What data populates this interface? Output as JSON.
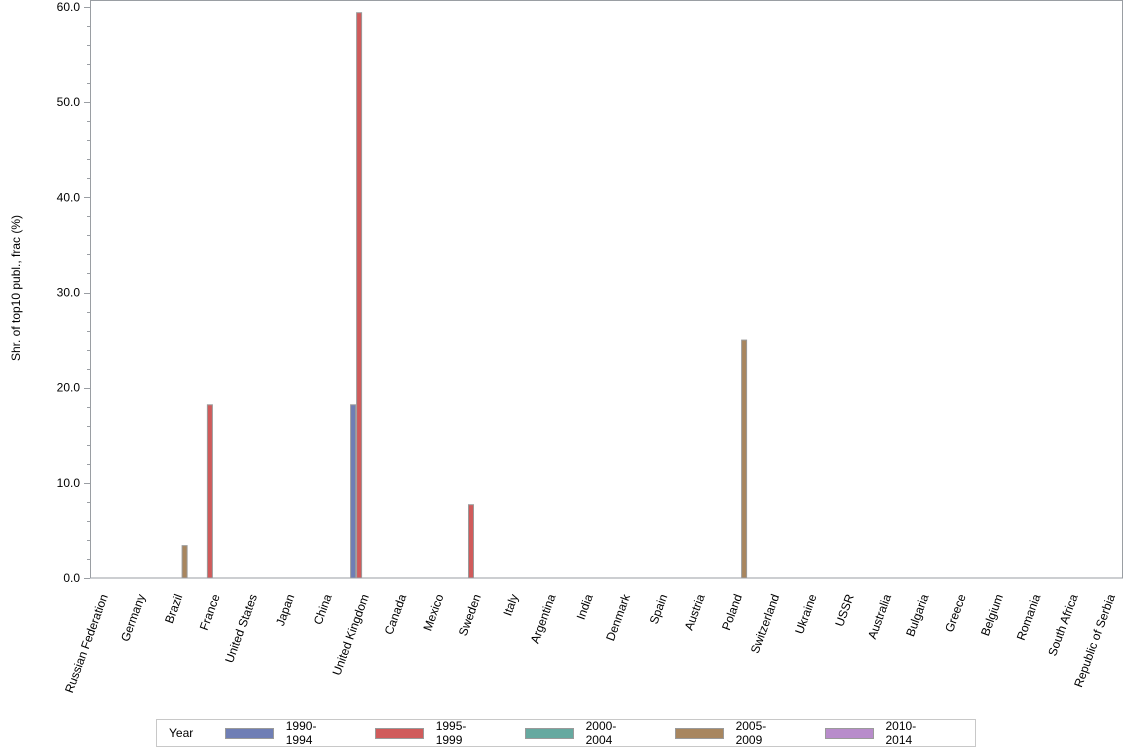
{
  "chart_data": {
    "type": "bar",
    "title": "",
    "xlabel": "",
    "ylabel": "Shr. of top10 publ., frac (%)",
    "ylim": [
      0,
      60
    ],
    "yticks": [
      "0.0",
      "10.0",
      "20.0",
      "30.0",
      "40.0",
      "50.0",
      "60.0"
    ],
    "grid": false,
    "legend_position": "bottom",
    "legend_title": "Year",
    "categories": [
      "Russian Federation",
      "Germany",
      "Brazil",
      "France",
      "United States",
      "Japan",
      "China",
      "United Kingdom",
      "Canada",
      "Mexico",
      "Sweden",
      "Italy",
      "Argentina",
      "India",
      "Denmark",
      "Spain",
      "Austria",
      "Poland",
      "Switzerland",
      "Ukraine",
      "USSR",
      "Australia",
      "Bulgaria",
      "Greece",
      "Belgium",
      "Romania",
      "South Africa",
      "Republic of Serbia"
    ],
    "series": [
      {
        "name": "1990-1994",
        "color": "#6f7eb5",
        "values": [
          0,
          0,
          0,
          0,
          0,
          0,
          0,
          18.2,
          0,
          0,
          0,
          0,
          0,
          0,
          0,
          0,
          0,
          0,
          0,
          0,
          0,
          0,
          0,
          0,
          0,
          0,
          0,
          0
        ]
      },
      {
        "name": "1995-1999",
        "color": "#d05b5b",
        "values": [
          0,
          0,
          0,
          18.2,
          0,
          0,
          0,
          59.4,
          0,
          0,
          7.7,
          0,
          0,
          0,
          0,
          0,
          0,
          0,
          0,
          0,
          0,
          0,
          0,
          0,
          0,
          0,
          0,
          0
        ]
      },
      {
        "name": "2000-2004",
        "color": "#66a9a0",
        "values": [
          0,
          0,
          0,
          0,
          0,
          0,
          0,
          0,
          0,
          0,
          0,
          0,
          0,
          0,
          0,
          0,
          0,
          0,
          0,
          0,
          0,
          0,
          0,
          0,
          0,
          0,
          0,
          0
        ]
      },
      {
        "name": "2005-2009",
        "color": "#a8865f",
        "values": [
          0,
          0,
          3.4,
          0,
          0,
          0,
          0,
          0,
          0,
          0,
          0,
          0,
          0,
          0,
          0,
          0,
          0,
          25.0,
          0,
          0,
          0,
          0,
          0,
          0,
          0,
          0,
          0,
          0
        ]
      },
      {
        "name": "2010-2014",
        "color": "#b88ccb",
        "values": [
          0,
          0,
          0,
          0,
          0,
          0,
          0,
          0,
          0,
          0,
          0,
          0,
          0,
          0,
          0,
          0,
          0,
          0,
          0,
          0,
          0,
          0,
          0,
          0,
          0,
          0,
          0,
          0
        ]
      }
    ]
  },
  "legend": {
    "title": "Year",
    "items": [
      {
        "label": "1990-1994",
        "color": "#6f7eb5"
      },
      {
        "label": "1995-1999",
        "color": "#d05b5b"
      },
      {
        "label": "2000-2004",
        "color": "#66a9a0"
      },
      {
        "label": "2005-2009",
        "color": "#a8865f"
      },
      {
        "label": "2010-2014",
        "color": "#b88ccb"
      }
    ]
  }
}
